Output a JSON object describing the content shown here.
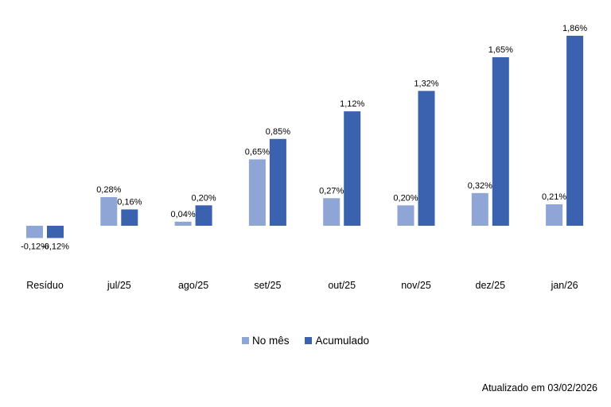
{
  "chart_data": {
    "type": "bar",
    "categories": [
      "Resíduo",
      "jul/25",
      "ago/25",
      "set/25",
      "out/25",
      "nov/25",
      "dez/25",
      "jan/26"
    ],
    "series": [
      {
        "name": "No mês",
        "color": "#8FA5D6",
        "values": [
          -0.12,
          0.28,
          0.04,
          0.65,
          0.27,
          0.2,
          0.32,
          0.21
        ],
        "labels": [
          "-0,12%",
          "0,28%",
          "0,04%",
          "0,65%",
          "0,27%",
          "0,20%",
          "0,32%",
          "0,21%"
        ]
      },
      {
        "name": "Acumulado",
        "color": "#3A62AF",
        "values": [
          -0.12,
          0.16,
          0.2,
          0.85,
          1.12,
          1.32,
          1.65,
          1.86
        ],
        "labels": [
          "-0,12%",
          "0,16%",
          "0,20%",
          "0,85%",
          "1,12%",
          "1,32%",
          "1,65%",
          "1,86%"
        ]
      }
    ],
    "ylim": [
      -0.12,
      1.86
    ],
    "grid": false,
    "legend_position": "bottom"
  },
  "footer": {
    "updated": "Atualizado em 03/02/2026"
  }
}
